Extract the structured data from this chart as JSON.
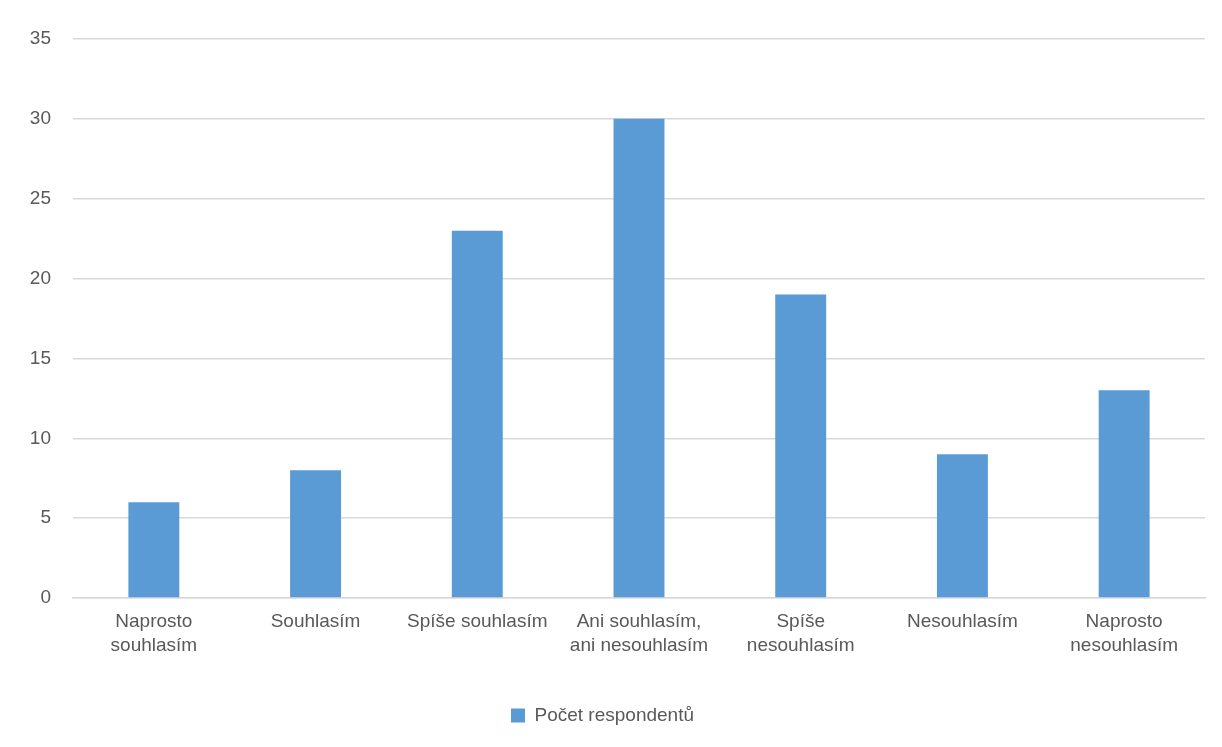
{
  "chart_data": {
    "type": "bar",
    "categories": [
      "Naprosto souhlasím",
      "Souhlasím",
      "Spíše souhlasím",
      "Ani souhlasím, ani nesouhlasím",
      "Spíše nesouhlasím",
      "Nesouhlasím",
      "Naprosto nesouhlasím"
    ],
    "series": [
      {
        "name": "Počet respondentů",
        "color": "#5b9bd5",
        "values": [
          6,
          8,
          23,
          30,
          19,
          9,
          13
        ]
      }
    ],
    "ylim": [
      0,
      35
    ],
    "yticks": [
      0,
      5,
      10,
      15,
      20,
      25,
      30,
      35
    ],
    "grid": "y",
    "legend": "bottom"
  }
}
